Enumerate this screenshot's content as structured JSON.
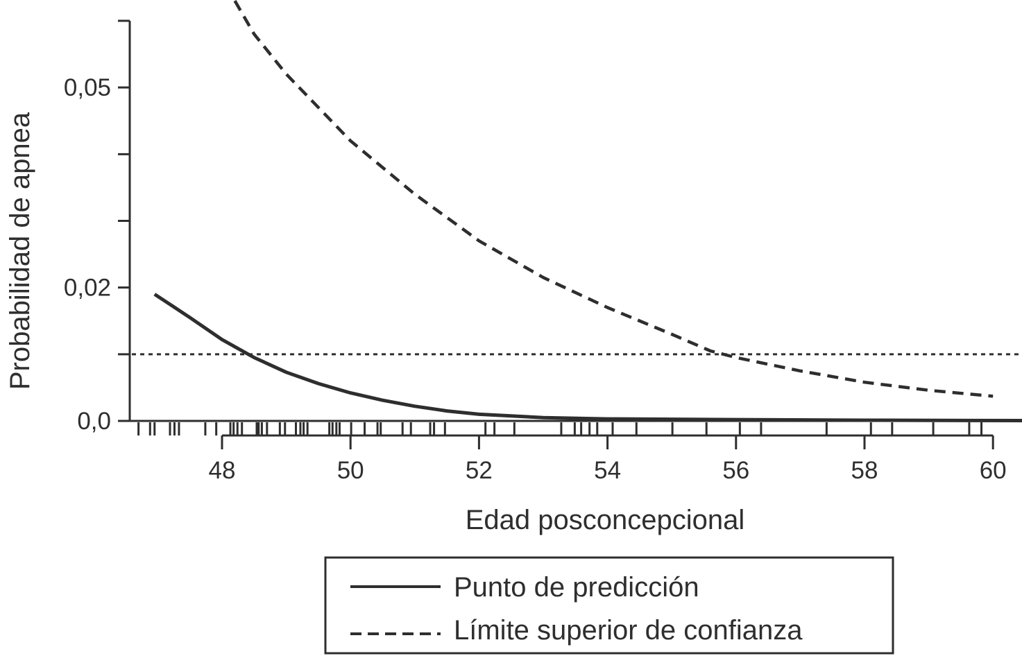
{
  "chart_data": {
    "type": "line",
    "title": "",
    "xlabel": "Edad posconcepcional",
    "ylabel": "Probabilidad de apnea",
    "xlim": [
      46.6,
      60.5
    ],
    "ylim": [
      0,
      0.06
    ],
    "x_ticks": [
      48,
      50,
      52,
      54,
      56,
      58,
      60
    ],
    "x_tick_labels": [
      "48",
      "50",
      "52",
      "54",
      "56",
      "58",
      "60"
    ],
    "y_ticks": [
      0,
      0.01,
      0.02,
      0.03,
      0.04,
      0.05,
      0.06
    ],
    "y_tick_labels": [
      {
        "value": 0,
        "label": "0,0"
      },
      {
        "value": 0.02,
        "label": "0,02"
      },
      {
        "value": 0.05,
        "label": "0,05"
      }
    ],
    "reference_line": {
      "y": 0.01,
      "style": "dotted"
    },
    "series": [
      {
        "name": "Punto de predicción",
        "style": "solid",
        "points": [
          [
            46.95,
            0.019
          ],
          [
            47.5,
            0.0155
          ],
          [
            48,
            0.0122
          ],
          [
            48.5,
            0.0095
          ],
          [
            49,
            0.0073
          ],
          [
            49.5,
            0.0056
          ],
          [
            50,
            0.0042
          ],
          [
            50.5,
            0.0031
          ],
          [
            51,
            0.0022
          ],
          [
            51.5,
            0.0015
          ],
          [
            52,
            0.001
          ],
          [
            53,
            0.0005
          ],
          [
            54,
            0.0003
          ],
          [
            56,
            0.0002
          ],
          [
            58,
            0.0001
          ],
          [
            60.5,
            5e-05
          ]
        ]
      },
      {
        "name": "Límite superior de confianza",
        "style": "dashed",
        "points": [
          [
            48.2,
            0.063
          ],
          [
            48.5,
            0.058
          ],
          [
            49,
            0.052
          ],
          [
            49.5,
            0.047
          ],
          [
            50,
            0.042
          ],
          [
            51,
            0.034
          ],
          [
            52,
            0.027
          ],
          [
            53,
            0.0215
          ],
          [
            54,
            0.017
          ],
          [
            55,
            0.013
          ],
          [
            55.6,
            0.0105
          ],
          [
            56,
            0.0095
          ],
          [
            57,
            0.0075
          ],
          [
            58,
            0.0058
          ],
          [
            59,
            0.0046
          ],
          [
            60,
            0.0037
          ]
        ]
      }
    ],
    "rug": [
      46.7,
      46.88,
      46.95,
      47.19,
      47.26,
      47.33,
      47.74,
      47.91,
      48.13,
      48.18,
      48.24,
      48.31,
      48.54,
      48.57,
      48.62,
      48.7,
      48.9,
      48.98,
      49.15,
      49.22,
      49.27,
      49.33,
      49.67,
      49.72,
      49.78,
      49.83,
      50.01,
      50.22,
      50.42,
      50.47,
      50.81,
      50.94,
      51.24,
      51.3,
      51.47,
      52.1,
      52.24,
      52.55,
      53.28,
      53.49,
      53.59,
      53.72,
      53.84,
      54.08,
      54.45,
      55.01,
      55.54,
      56.06,
      56.39,
      57.41,
      58.1,
      58.43,
      59.07,
      59.63,
      59.82
    ],
    "legend": {
      "placement": "bottom",
      "entries": [
        "Punto de predicción",
        "Límite superior de confianza"
      ]
    },
    "colors": {
      "ink": "#2e2e2e"
    }
  }
}
